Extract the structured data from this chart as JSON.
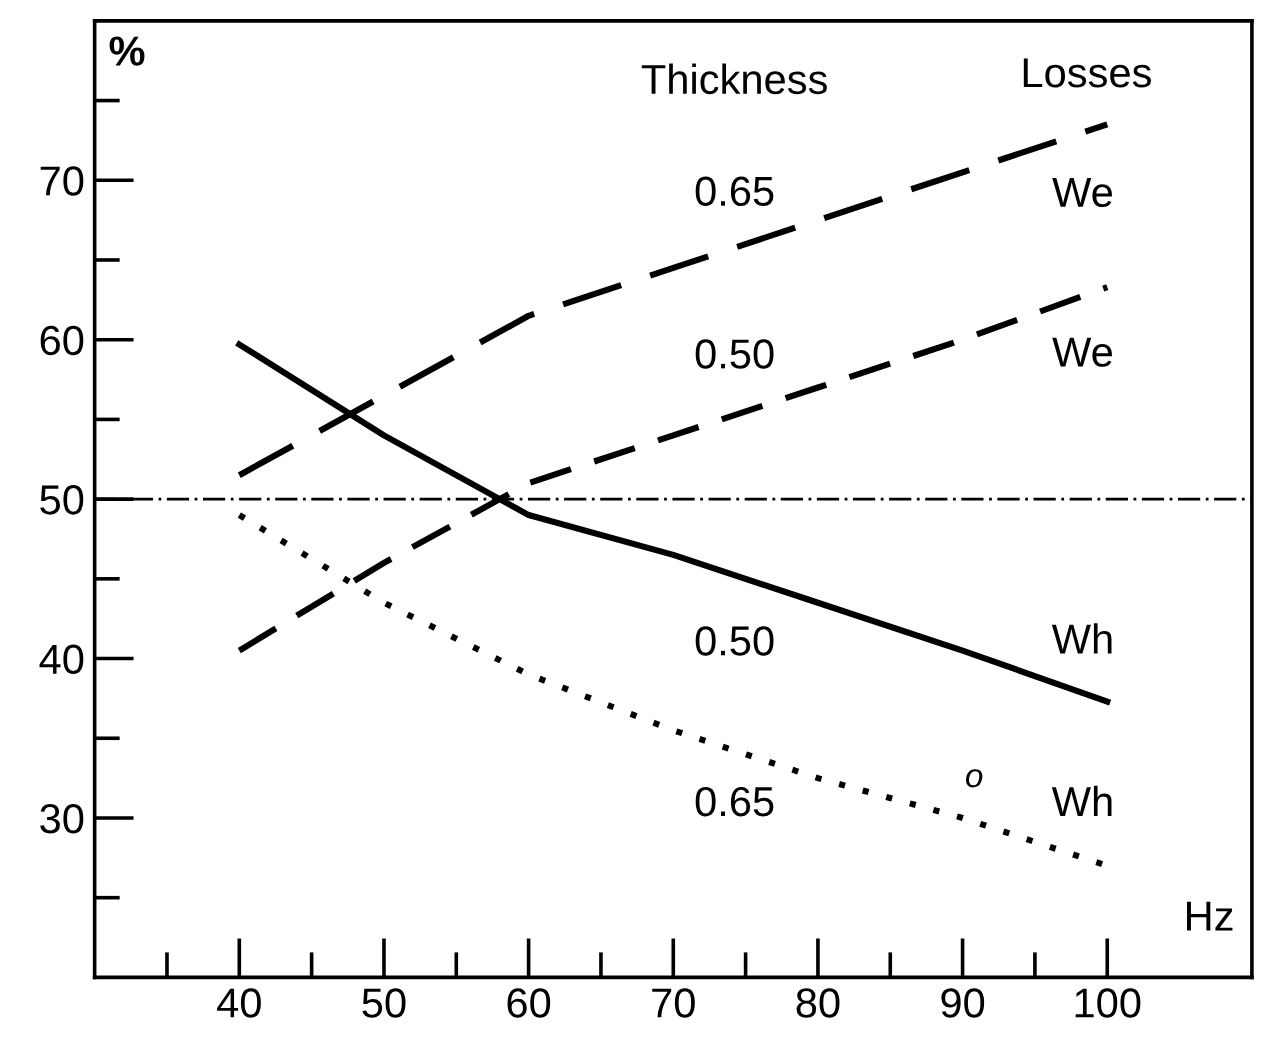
{
  "chart_data": {
    "type": "line",
    "xlabel": "Hz",
    "ylabel": "%",
    "xlim": [
      30,
      110
    ],
    "ylim": [
      20,
      80
    ],
    "xticks": [
      {
        "value": 35,
        "label": null
      },
      40,
      {
        "value": 45,
        "label": null
      },
      50,
      {
        "value": 55,
        "label": null
      },
      60,
      {
        "value": 65,
        "label": null
      },
      70,
      {
        "value": 75,
        "label": null
      },
      80,
      {
        "value": 85,
        "label": null
      },
      90,
      {
        "value": 95,
        "label": null
      },
      100
    ],
    "yticks": [
      {
        "value": 25,
        "label": null
      },
      30,
      {
        "value": 35,
        "label": null
      },
      40,
      {
        "value": 45,
        "label": null
      },
      50,
      {
        "value": 55,
        "label": null
      },
      60,
      {
        "value": 65,
        "label": null
      },
      70,
      {
        "value": 75,
        "label": null
      }
    ],
    "grid": false,
    "legend": false,
    "marker": "none",
    "series": [
      {
        "color": "#000000",
        "line_style": "dashed",
        "x": [
          40,
          50,
          60,
          70,
          80,
          90,
          100
        ],
        "values": [
          51.5,
          56.5,
          61.5,
          64.5,
          67.5,
          70.5,
          73.5
        ]
      },
      {
        "color": "#000000",
        "line_style": "dashed",
        "x": [
          40,
          50,
          58,
          60,
          70,
          80,
          90,
          100
        ],
        "values": [
          40.5,
          46,
          50,
          51,
          54,
          57,
          60,
          63.3
        ]
      },
      {
        "color": "#000000",
        "line_style": "solid",
        "x": [
          40,
          50,
          58,
          60,
          70,
          80,
          90,
          100
        ],
        "values": [
          59.7,
          54,
          50,
          49,
          46.5,
          43.5,
          40.5,
          37.3
        ]
      },
      {
        "color": "#000000",
        "line_style": "dotted",
        "x": [
          40,
          50,
          60,
          70,
          80,
          90,
          100
        ],
        "values": [
          49,
          43.5,
          39,
          35.5,
          32.5,
          30,
          27
        ]
      }
    ],
    "ref_lines": [
      {
        "axis": "y",
        "value": 50,
        "label": null,
        "color": "#000000",
        "line_style": "dashdot"
      }
    ],
    "annotations": [
      "Thickness",
      "Losses",
      "0.65",
      "We",
      "0.50",
      "We",
      "0.50",
      "Wh",
      "0.65",
      "Wh",
      "o"
    ]
  }
}
